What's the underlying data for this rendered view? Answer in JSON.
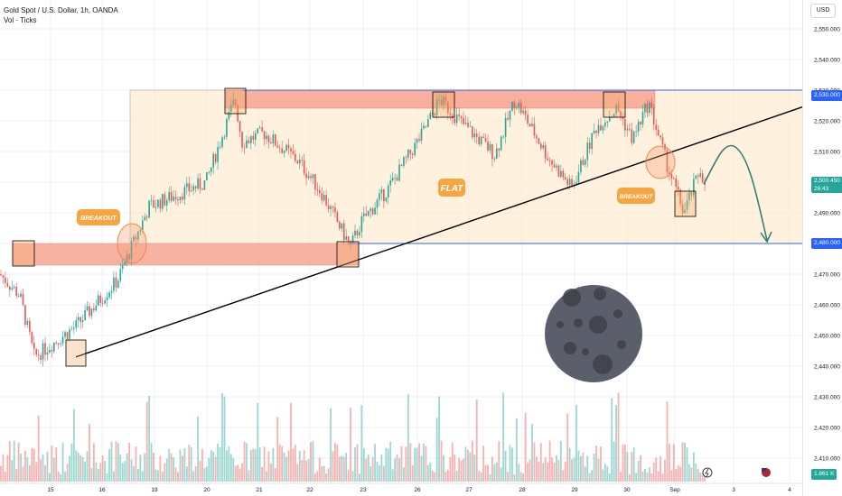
{
  "header": {
    "title": "Gold Spot / U.S. Dollar, 1h, OANDA",
    "subtitle": "Vol · Ticks"
  },
  "currency_button": "USD",
  "price_axis": {
    "ticks": [
      "2,550.000",
      "2,540.000",
      "2,530.000",
      "2,520.000",
      "2,510.000",
      "2,500.000",
      "2,490.000",
      "2,480.000",
      "2,470.000",
      "2,460.000",
      "2,450.000",
      "2,440.000",
      "2,430.000",
      "2,420.000",
      "2,410.000"
    ],
    "tick_values": [
      2550,
      2540,
      2530,
      2520,
      2510,
      2500,
      2490,
      2480,
      2470,
      2460,
      2450,
      2440,
      2430,
      2420,
      2410
    ],
    "tags": {
      "upper": "2,530.000",
      "current": "2,500.450",
      "current_sub": "26:43",
      "lower": "2,480.000",
      "volume": "1.861 K"
    }
  },
  "time_axis": {
    "labels": [
      "15",
      "16",
      "19",
      "20",
      "21",
      "22",
      "23",
      "26",
      "27",
      "28",
      "29",
      "30",
      "Sep",
      "3",
      "4"
    ]
  },
  "annotations": {
    "breakout_left": "BREAKOUT",
    "flat": "FLAT",
    "breakout_right": "BREAKOUT"
  },
  "colors": {
    "up": "#26a69a",
    "down": "#ef5350",
    "zone": "#f7a08c",
    "range_fill": "#fde7c6",
    "label_orange": "#f7a540",
    "level_line": "#2962ff",
    "moon": "#5b5f6b",
    "arrow": "#2c7873"
  },
  "chart_data": {
    "type": "candlestick",
    "symbol": "Gold Spot / U.S. Dollar",
    "interval": "1h",
    "exchange": "OANDA",
    "y_range": [
      2405,
      2555
    ],
    "levels": [
      2530,
      2480
    ],
    "last_price": 2500.45,
    "trendline": [
      {
        "x": "15",
        "y": 2443
      },
      {
        "x": "4",
        "y": 2524
      }
    ],
    "anchors": [
      {
        "x": "14",
        "y": 2470
      },
      {
        "x": "15",
        "y": 2463
      },
      {
        "x": "15",
        "y": 2443
      },
      {
        "x": "16",
        "y": 2453
      },
      {
        "x": "16",
        "y": 2468
      },
      {
        "x": "19",
        "y": 2492
      },
      {
        "x": "20",
        "y": 2500
      },
      {
        "x": "20",
        "y": 2527
      },
      {
        "x": "21",
        "y": 2513
      },
      {
        "x": "21",
        "y": 2516
      },
      {
        "x": "22",
        "y": 2507
      },
      {
        "x": "22",
        "y": 2497
      },
      {
        "x": "22",
        "y": 2479
      },
      {
        "x": "23",
        "y": 2487
      },
      {
        "x": "23",
        "y": 2498
      },
      {
        "x": "26",
        "y": 2515
      },
      {
        "x": "26",
        "y": 2527
      },
      {
        "x": "27",
        "y": 2519
      },
      {
        "x": "27",
        "y": 2509
      },
      {
        "x": "28",
        "y": 2527
      },
      {
        "x": "28",
        "y": 2508
      },
      {
        "x": "29",
        "y": 2498
      },
      {
        "x": "29",
        "y": 2518
      },
      {
        "x": "30",
        "y": 2524
      },
      {
        "x": "30",
        "y": 2514
      },
      {
        "x": "30",
        "y": 2526
      },
      {
        "x": "30",
        "y": 2506
      },
      {
        "x": "Sep",
        "y": 2490
      },
      {
        "x": "Sep",
        "y": 2505
      },
      {
        "x": "Sep",
        "y": 2496
      },
      {
        "x": "Sep",
        "y": 2503
      }
    ],
    "volume_unit": "K",
    "last_volume": 1.861
  }
}
